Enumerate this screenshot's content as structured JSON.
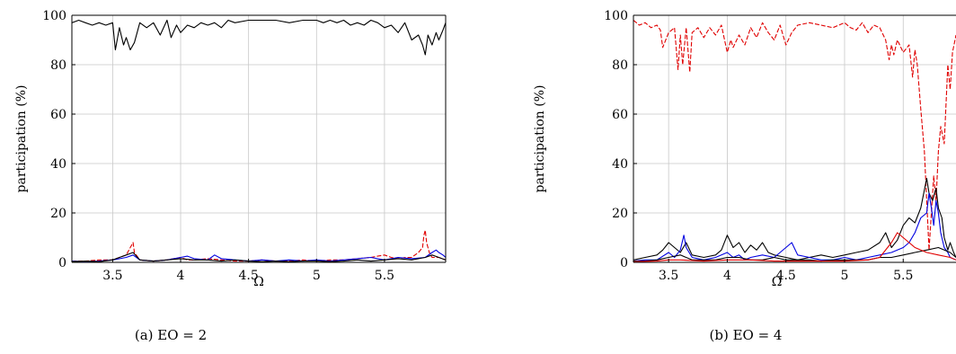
{
  "chart_data": [
    {
      "type": "line",
      "caption": "(a)  EO = 2",
      "xlabel": "Ω",
      "ylabel": "participation (%)",
      "xlim": [
        3.2,
        5.95
      ],
      "ylim": [
        0,
        100
      ],
      "xticks": [
        "3.5",
        "4",
        "4.5",
        "5",
        "5.5"
      ],
      "xtick_values": [
        3.5,
        4.0,
        4.5,
        5.0,
        5.5
      ],
      "yticks": [
        "0",
        "20",
        "40",
        "60",
        "80",
        "100"
      ],
      "ytick_values": [
        0,
        20,
        40,
        60,
        80,
        100
      ],
      "grid": true,
      "series": [
        {
          "color": "#000000",
          "dash": "solid",
          "x": [
            3.2,
            3.25,
            3.3,
            3.35,
            3.4,
            3.45,
            3.5,
            3.52,
            3.55,
            3.58,
            3.6,
            3.63,
            3.66,
            3.7,
            3.75,
            3.8,
            3.85,
            3.9,
            3.93,
            3.97,
            4.0,
            4.05,
            4.1,
            4.15,
            4.2,
            4.25,
            4.3,
            4.35,
            4.4,
            4.5,
            4.6,
            4.7,
            4.8,
            4.9,
            5.0,
            5.05,
            5.1,
            5.15,
            5.2,
            5.25,
            5.3,
            5.35,
            5.4,
            5.45,
            5.5,
            5.55,
            5.6,
            5.65,
            5.7,
            5.75,
            5.78,
            5.8,
            5.82,
            5.85,
            5.88,
            5.9,
            5.93,
            5.95
          ],
          "y": [
            97,
            98,
            97,
            96,
            97,
            96,
            97,
            86,
            95,
            88,
            91,
            86,
            89,
            97,
            95,
            97,
            92,
            98,
            91,
            96,
            93,
            96,
            95,
            97,
            96,
            97,
            95,
            98,
            97,
            98,
            98,
            98,
            97,
            98,
            98,
            97,
            98,
            97,
            98,
            96,
            97,
            96,
            98,
            97,
            95,
            96,
            93,
            97,
            90,
            92,
            88,
            84,
            92,
            88,
            93,
            90,
            94,
            97
          ]
        },
        {
          "color": "#e00000",
          "dash": "dashed",
          "x": [
            3.2,
            3.3,
            3.4,
            3.5,
            3.55,
            3.6,
            3.63,
            3.65,
            3.66,
            3.7,
            3.8,
            3.9,
            4.0,
            4.05,
            4.1,
            4.2,
            4.3,
            4.4,
            4.5,
            4.6,
            4.7,
            4.8,
            4.9,
            5.0,
            5.1,
            5.2,
            5.3,
            5.4,
            5.45,
            5.5,
            5.55,
            5.6,
            5.65,
            5.7,
            5.75,
            5.78,
            5.79,
            5.8,
            5.81,
            5.83,
            5.85,
            5.9,
            5.95
          ],
          "y": [
            0.5,
            0.5,
            1,
            1,
            2,
            3,
            6,
            8,
            4,
            1,
            0.5,
            1,
            2,
            1,
            1,
            1.5,
            1,
            0.5,
            0.5,
            1,
            0.5,
            0.5,
            1,
            0.5,
            1,
            1,
            1.5,
            2,
            2.5,
            3,
            2,
            1.5,
            2,
            2,
            4,
            6,
            11,
            13,
            8,
            4,
            2,
            2,
            1
          ]
        },
        {
          "color": "#0000e0",
          "dash": "solid",
          "x": [
            3.2,
            3.3,
            3.4,
            3.5,
            3.6,
            3.65,
            3.7,
            3.8,
            3.9,
            4.0,
            4.05,
            4.1,
            4.2,
            4.25,
            4.3,
            4.4,
            4.5,
            4.6,
            4.7,
            4.8,
            4.9,
            5.0,
            5.1,
            5.2,
            5.3,
            5.4,
            5.5,
            5.6,
            5.7,
            5.8,
            5.85,
            5.88,
            5.9,
            5.93,
            5.95
          ],
          "y": [
            0.5,
            0.3,
            0.5,
            1,
            2,
            3,
            1,
            0.5,
            1,
            2,
            2.5,
            1.5,
            1,
            3,
            1.5,
            1,
            0.5,
            1,
            0.5,
            1,
            0.5,
            1,
            0.5,
            1,
            1.5,
            2,
            1,
            2,
            1.5,
            2,
            4,
            5,
            4,
            3,
            2
          ]
        },
        {
          "color": "#000000",
          "dash": "solid",
          "x": [
            3.2,
            3.3,
            3.4,
            3.5,
            3.55,
            3.6,
            3.65,
            3.7,
            3.8,
            3.9,
            4.0,
            4.1,
            4.2,
            4.3,
            4.4,
            4.5,
            4.6,
            4.7,
            4.8,
            4.9,
            5.0,
            5.1,
            5.2,
            5.3,
            5.4,
            5.5,
            5.6,
            5.7,
            5.8,
            5.85,
            5.9,
            5.95
          ],
          "y": [
            0.3,
            0.5,
            0.3,
            1,
            2,
            3,
            4,
            1,
            0.5,
            1,
            1.5,
            1,
            1,
            0.5,
            1,
            0.5,
            0.3,
            0.5,
            0.3,
            0.5,
            0.5,
            0.3,
            0.5,
            1,
            0.5,
            1,
            1.5,
            1,
            2,
            3,
            2,
            1
          ]
        }
      ]
    },
    {
      "type": "line",
      "caption": "(b)  EO = 4",
      "xlabel": "Ω",
      "ylabel": "participation (%)",
      "xlim": [
        3.2,
        5.95
      ],
      "ylim": [
        0,
        100
      ],
      "xticks": [
        "3.5",
        "4",
        "4.5",
        "5",
        "5.5"
      ],
      "xtick_values": [
        3.5,
        4.0,
        4.5,
        5.0,
        5.5
      ],
      "yticks": [
        "0",
        "20",
        "40",
        "60",
        "80",
        "100"
      ],
      "ytick_values": [
        0,
        20,
        40,
        60,
        80,
        100
      ],
      "grid": true,
      "series": [
        {
          "color": "#e00000",
          "dash": "dashed",
          "x": [
            3.2,
            3.25,
            3.3,
            3.35,
            3.4,
            3.43,
            3.45,
            3.5,
            3.55,
            3.58,
            3.6,
            3.62,
            3.65,
            3.68,
            3.7,
            3.75,
            3.8,
            3.85,
            3.9,
            3.95,
            4.0,
            4.03,
            4.05,
            4.1,
            4.15,
            4.2,
            4.25,
            4.3,
            4.35,
            4.4,
            4.45,
            4.5,
            4.55,
            4.6,
            4.7,
            4.8,
            4.9,
            5.0,
            5.05,
            5.1,
            5.15,
            5.2,
            5.25,
            5.3,
            5.35,
            5.38,
            5.4,
            5.42,
            5.45,
            5.5,
            5.55,
            5.58,
            5.6,
            5.62,
            5.65,
            5.68,
            5.7,
            5.72,
            5.74,
            5.76,
            5.78,
            5.8,
            5.82,
            5.85,
            5.88,
            5.9,
            5.92,
            5.95
          ],
          "y": [
            98,
            96,
            97,
            95,
            96,
            94,
            87,
            93,
            95,
            78,
            92,
            80,
            95,
            77,
            93,
            95,
            91,
            95,
            92,
            96,
            85,
            90,
            87,
            92,
            88,
            95,
            91,
            97,
            93,
            90,
            96,
            88,
            93,
            96,
            97,
            96,
            95,
            97,
            95,
            94,
            97,
            93,
            96,
            95,
            90,
            82,
            88,
            84,
            90,
            85,
            88,
            75,
            86,
            80,
            62,
            45,
            25,
            5,
            20,
            35,
            25,
            45,
            55,
            48,
            80,
            70,
            85,
            92
          ]
        },
        {
          "color": "#000000",
          "dash": "solid",
          "x": [
            3.2,
            3.3,
            3.4,
            3.45,
            3.5,
            3.55,
            3.6,
            3.65,
            3.7,
            3.8,
            3.9,
            3.95,
            4.0,
            4.05,
            4.1,
            4.15,
            4.2,
            4.25,
            4.3,
            4.35,
            4.4,
            4.5,
            4.6,
            4.7,
            4.8,
            4.9,
            5.0,
            5.1,
            5.2,
            5.3,
            5.35,
            5.4,
            5.45,
            5.5,
            5.55,
            5.6,
            5.65,
            5.7,
            5.72,
            5.75,
            5.78,
            5.8,
            5.83,
            5.85,
            5.88,
            5.9,
            5.93,
            5.95
          ],
          "y": [
            1,
            2,
            3,
            5,
            8,
            6,
            4,
            8,
            3,
            2,
            3,
            5,
            11,
            6,
            8,
            4,
            7,
            5,
            8,
            4,
            3,
            2,
            1,
            2,
            3,
            2,
            3,
            4,
            5,
            8,
            12,
            6,
            9,
            15,
            18,
            16,
            22,
            34,
            28,
            25,
            30,
            22,
            18,
            10,
            5,
            8,
            4,
            2
          ]
        },
        {
          "color": "#0000e0",
          "dash": "solid",
          "x": [
            3.2,
            3.3,
            3.4,
            3.5,
            3.55,
            3.6,
            3.63,
            3.65,
            3.7,
            3.8,
            3.9,
            4.0,
            4.05,
            4.1,
            4.15,
            4.2,
            4.3,
            4.4,
            4.5,
            4.55,
            4.6,
            4.7,
            4.8,
            4.9,
            5.0,
            5.1,
            5.2,
            5.3,
            5.4,
            5.5,
            5.55,
            5.6,
            5.65,
            5.7,
            5.72,
            5.74,
            5.76,
            5.78,
            5.8,
            5.82,
            5.85,
            5.88,
            5.9,
            5.95
          ],
          "y": [
            0.5,
            1,
            1,
            4,
            2,
            5,
            11,
            6,
            2,
            1,
            2,
            4,
            2,
            3,
            1,
            2,
            3,
            2,
            6,
            8,
            3,
            2,
            1,
            1,
            2,
            1,
            2,
            3,
            4,
            6,
            8,
            12,
            18,
            20,
            28,
            22,
            15,
            25,
            20,
            12,
            6,
            4,
            2,
            1
          ]
        },
        {
          "color": "#000000",
          "dash": "solid",
          "x": [
            3.2,
            3.3,
            3.4,
            3.5,
            3.6,
            3.7,
            3.8,
            3.9,
            4.0,
            4.1,
            4.2,
            4.3,
            4.4,
            4.5,
            4.6,
            4.7,
            4.8,
            4.9,
            5.0,
            5.1,
            5.2,
            5.3,
            5.4,
            5.5,
            5.6,
            5.7,
            5.8,
            5.9,
            5.95
          ],
          "y": [
            0.5,
            0.5,
            1,
            2,
            3,
            1,
            1,
            1,
            2,
            2,
            1,
            1,
            2,
            1,
            1,
            1,
            0.5,
            1,
            1,
            1,
            1,
            2,
            2,
            3,
            4,
            5,
            6,
            4,
            2
          ]
        },
        {
          "color": "#e00000",
          "dash": "solid",
          "x": [
            3.2,
            3.4,
            3.5,
            3.6,
            3.8,
            4.0,
            4.2,
            4.4,
            4.6,
            4.8,
            5.0,
            5.2,
            5.3,
            5.4,
            5.45,
            5.5,
            5.55,
            5.6,
            5.7,
            5.8,
            5.9,
            5.95
          ],
          "y": [
            0.3,
            0.5,
            1,
            1,
            0.5,
            1,
            1,
            0.5,
            0.5,
            0.5,
            0.5,
            1,
            2,
            8,
            12,
            10,
            8,
            6,
            4,
            3,
            2,
            1
          ]
        }
      ]
    }
  ]
}
